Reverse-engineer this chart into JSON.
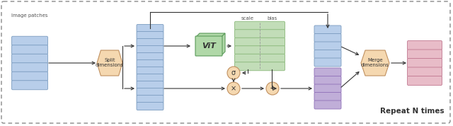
{
  "bg_color": "#ffffff",
  "stack_blue_color": "#b8ceea",
  "stack_blue_edge": "#7a9bbf",
  "stack_green_color": "#c2ddb8",
  "stack_green_edge": "#8ab87a",
  "stack_purple_color": "#c0aed8",
  "stack_purple_edge": "#9070b8",
  "stack_pink_color": "#e8bcc8",
  "stack_pink_edge": "#c07890",
  "vit_color": "#b0d8a8",
  "vit_edge": "#5a9a5a",
  "vit_text": "ViT",
  "split_color": "#f5d8b0",
  "split_edge": "#c09060",
  "split_text": "Split\ndimensions",
  "merge_color": "#f5d8b0",
  "merge_edge": "#c09060",
  "merge_text": "Merge\ndimensions",
  "sigma_text": "σ",
  "times_text": "×",
  "plus_text": "+",
  "scale_label": "scale",
  "bias_label": "bias",
  "image_patches_label": "Image patches",
  "repeat_label": "Repeat N times"
}
